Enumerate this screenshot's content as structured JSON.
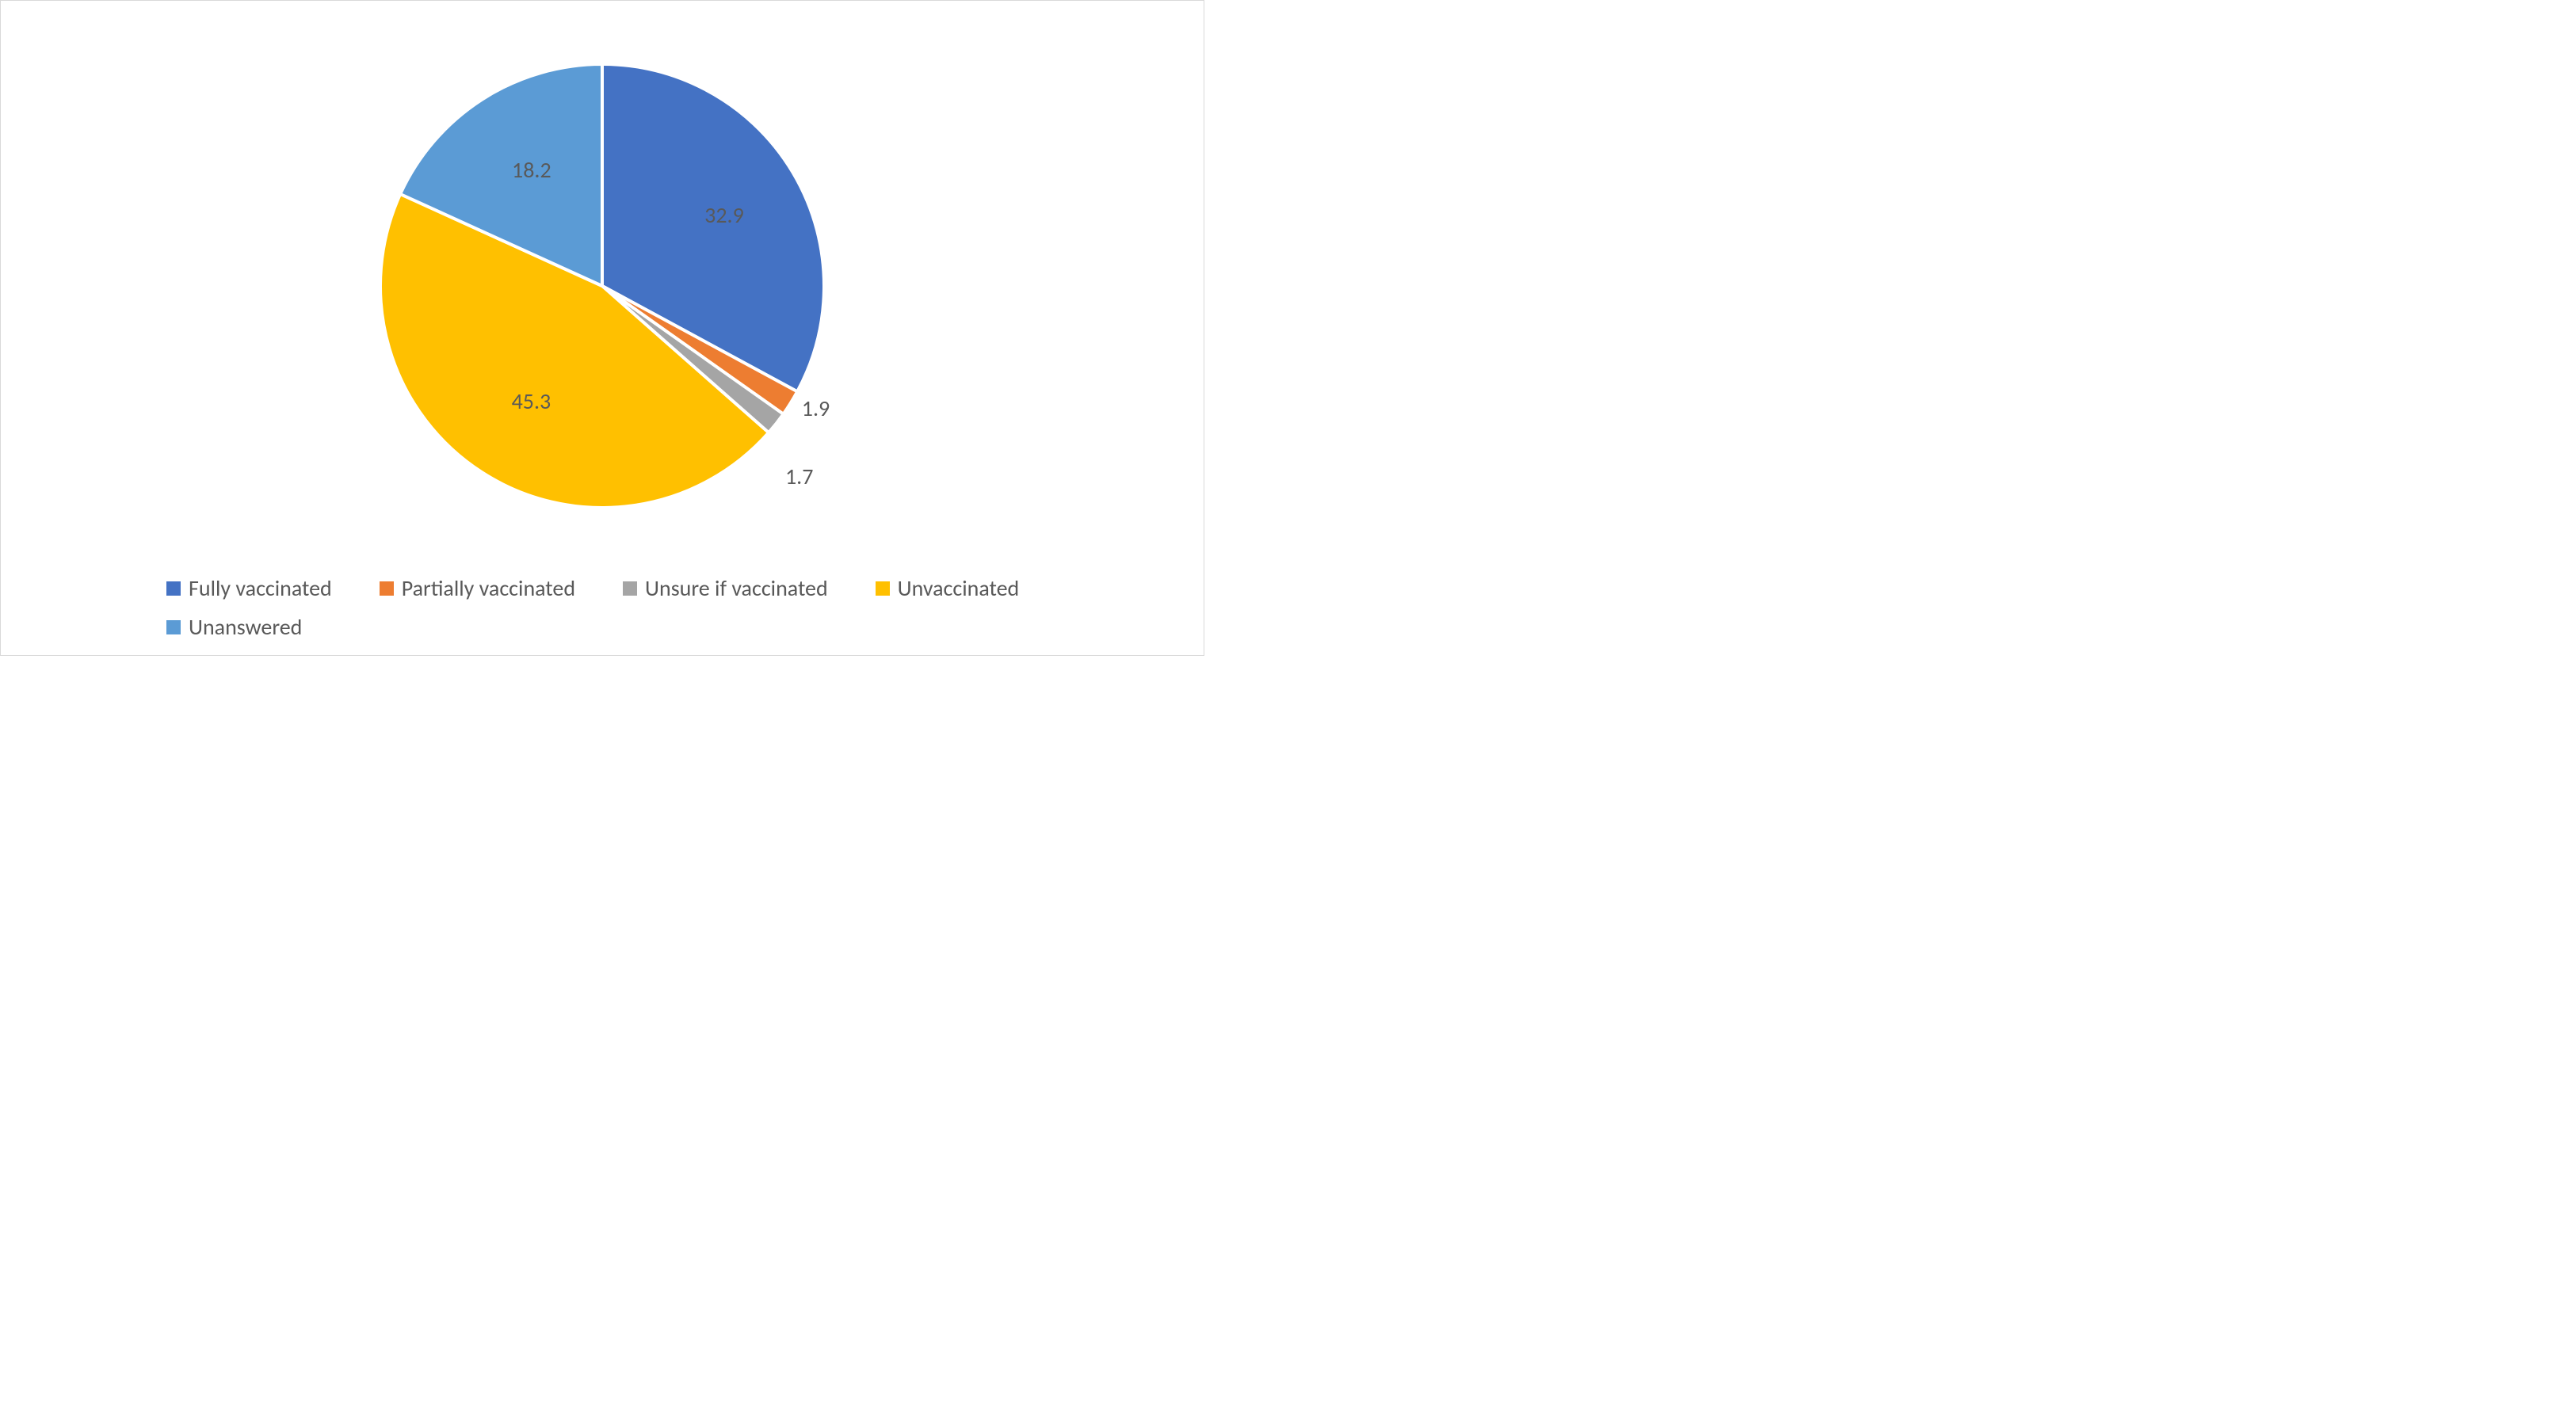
{
  "chart": {
    "type": "pie",
    "background_color": "#ffffff",
    "border_color": "#d9d9d9",
    "slice_gap_color": "#ffffff",
    "slice_gap_width": 4,
    "label_color": "#595959",
    "label_fontsize": 28,
    "legend_fontsize": 28,
    "legend_text_color": "#595959",
    "legend_position": "bottom",
    "legend_columns": 3,
    "pie_radius": 280,
    "series": [
      {
        "label": "Fully vaccinated",
        "value": 32.9,
        "color": "#4472c4",
        "display": "32.9"
      },
      {
        "label": "Partially vaccinated",
        "value": 1.9,
        "color": "#ed7d31",
        "display": "1.9"
      },
      {
        "label": "Unsure if vaccinated",
        "value": 1.7,
        "color": "#a5a5a5",
        "display": "1.7"
      },
      {
        "label": "Unvaccinated",
        "value": 45.3,
        "color": "#ffc000",
        "display": "45.3"
      },
      {
        "label": "Unanswered",
        "value": 18.2,
        "color": "#5b9bd5",
        "display": "18.2"
      }
    ]
  }
}
